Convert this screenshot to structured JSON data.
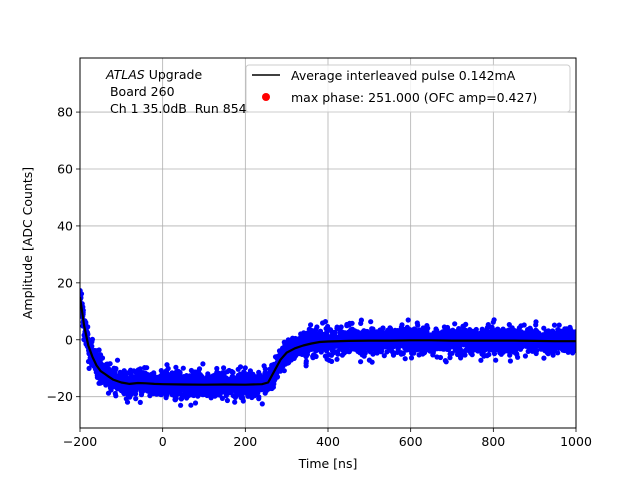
{
  "chart_data": {
    "type": "scatter",
    "title": "",
    "xlabel": "Time [ns]",
    "ylabel": "Amplitude [ADC Counts]",
    "xlim": [
      -200,
      1000
    ],
    "ylim": [
      -31,
      99
    ],
    "xticks": [
      -200,
      0,
      200,
      400,
      600,
      800,
      1000
    ],
    "yticks": [
      -20,
      0,
      20,
      40,
      60,
      80
    ],
    "grid": true,
    "legend_position": "top-right",
    "annotation": {
      "line1_italic": "ATLAS",
      "line1_rest": " Upgrade",
      "line2": " Board 260",
      "line3": " Ch 1 35.0dB  Run 854"
    },
    "series": [
      {
        "name": "Average interleaved pulse 0.142mA",
        "kind": "line",
        "color": "#000000",
        "x": [
          -200,
          -190,
          -180,
          -170,
          -160,
          -150,
          -140,
          -130,
          -120,
          -100,
          -80,
          -60,
          -40,
          -20,
          0,
          50,
          100,
          150,
          200,
          240,
          255,
          270,
          285,
          300,
          320,
          340,
          360,
          380,
          400,
          450,
          500,
          550,
          600,
          650,
          700,
          750,
          800,
          850,
          900,
          950,
          1000
        ],
        "y": [
          15,
          5,
          -2,
          -6,
          -9,
          -11,
          -12,
          -13,
          -14,
          -15,
          -15.5,
          -15.2,
          -15.3,
          -15.5,
          -15.6,
          -15.7,
          -15.8,
          -15.7,
          -15.8,
          -15.6,
          -15,
          -11,
          -7,
          -4.5,
          -3,
          -2,
          -1.3,
          -0.8,
          -0.6,
          -0.4,
          -0.3,
          -0.3,
          -0.2,
          -0.2,
          -0.3,
          -0.3,
          -0.3,
          -0.3,
          -0.4,
          -0.5,
          -0.5
        ]
      },
      {
        "name": "",
        "kind": "scatter-band",
        "color": "#0000ff",
        "x": [
          -200,
          -190,
          -180,
          -170,
          -160,
          -150,
          -140,
          -130,
          -120,
          -100,
          -80,
          -60,
          -40,
          -20,
          0,
          50,
          100,
          150,
          200,
          240,
          255,
          270,
          285,
          300,
          320,
          340,
          360,
          380,
          400,
          450,
          500,
          550,
          600,
          650,
          700,
          750,
          800,
          850,
          900,
          950,
          1000
        ],
        "y": [
          15,
          5,
          -2,
          -6,
          -9,
          -11,
          -12,
          -13,
          -14,
          -15,
          -15.5,
          -15.2,
          -15.3,
          -15.5,
          -15.6,
          -15.7,
          -15.8,
          -15.7,
          -15.8,
          -15.6,
          -15,
          -11,
          -7,
          -4.5,
          -3,
          -2,
          -1.3,
          -0.8,
          -0.6,
          -0.4,
          -0.3,
          -0.3,
          -0.2,
          -0.2,
          -0.3,
          -0.3,
          -0.3,
          -0.3,
          -0.4,
          -0.5,
          -0.5
        ],
        "spread": 4.5
      },
      {
        "name": "max phase: 251.000 (OFC amp=0.427)",
        "kind": "marker",
        "color": "#ff0000"
      }
    ]
  }
}
